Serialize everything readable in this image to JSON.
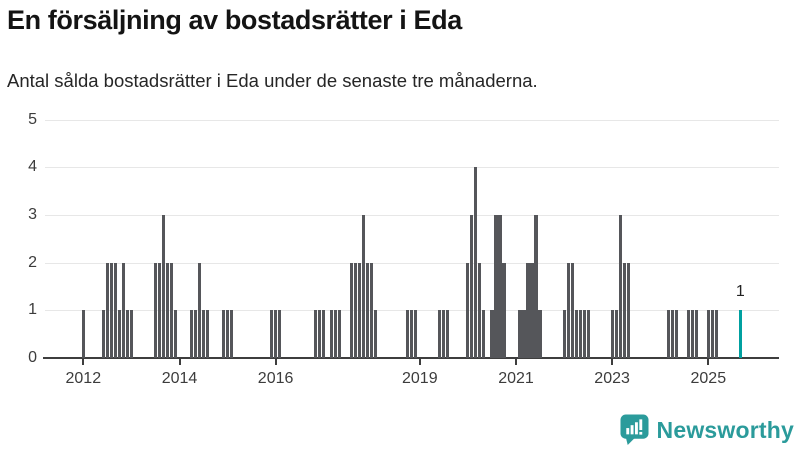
{
  "header": {
    "title": "En försäljning av bostadsrätter i Eda",
    "subtitle": "Antal sålda bostadsrätter i Eda under de senaste tre månaderna."
  },
  "chart_data": {
    "type": "bar",
    "title": "En försäljning av bostadsrätter i Eda",
    "subtitle": "Antal sålda bostadsrätter i Eda under de senaste tre månaderna.",
    "xlabel": "",
    "ylabel": "",
    "ylim": [
      0,
      5
    ],
    "yticks": [
      0,
      1,
      2,
      3,
      4,
      5
    ],
    "xticks": [
      "2012",
      "2014",
      "2016",
      "2019",
      "2021",
      "2023",
      "2025"
    ],
    "grid": "horizontal",
    "legend": "none",
    "bar_color": "#55565a",
    "highlight_color": "#00a0a0",
    "bars": [
      [
        "2012-01",
        1
      ],
      [
        "2012-06",
        1
      ],
      [
        "2012-07",
        2
      ],
      [
        "2012-08",
        2
      ],
      [
        "2012-09",
        2
      ],
      [
        "2012-10",
        1
      ],
      [
        "2012-11",
        2
      ],
      [
        "2012-12",
        1
      ],
      [
        "2013-01",
        1
      ],
      [
        "2013-07",
        2
      ],
      [
        "2013-08",
        2
      ],
      [
        "2013-09",
        3
      ],
      [
        "2013-10",
        2
      ],
      [
        "2013-11",
        2
      ],
      [
        "2013-12",
        1
      ],
      [
        "2014-04",
        1
      ],
      [
        "2014-05",
        1
      ],
      [
        "2014-06",
        2
      ],
      [
        "2014-07",
        1
      ],
      [
        "2014-08",
        1
      ],
      [
        "2014-12",
        1
      ],
      [
        "2015-01",
        1
      ],
      [
        "2015-02",
        1
      ],
      [
        "2015-12",
        1
      ],
      [
        "2016-01",
        1
      ],
      [
        "2016-02",
        1
      ],
      [
        "2016-11",
        1
      ],
      [
        "2016-12",
        1
      ],
      [
        "2017-01",
        1
      ],
      [
        "2017-03",
        1
      ],
      [
        "2017-04",
        1
      ],
      [
        "2017-05",
        1
      ],
      [
        "2017-08",
        2
      ],
      [
        "2017-09",
        2
      ],
      [
        "2017-10",
        2
      ],
      [
        "2017-11",
        3
      ],
      [
        "2017-12",
        2
      ],
      [
        "2018-01",
        2
      ],
      [
        "2018-02",
        1
      ],
      [
        "2018-10",
        1
      ],
      [
        "2018-11",
        1
      ],
      [
        "2018-12",
        1
      ],
      [
        "2019-06",
        1
      ],
      [
        "2019-07",
        1
      ],
      [
        "2019-08",
        1
      ],
      [
        "2020-01",
        2
      ],
      [
        "2020-02",
        3
      ],
      [
        "2020-03",
        4
      ],
      [
        "2020-04",
        2
      ],
      [
        "2020-05",
        1
      ],
      [
        "2020-07",
        1
      ],
      [
        "2020-08",
        3
      ],
      [
        "2020-09",
        3
      ],
      [
        "2020-10",
        2
      ],
      [
        "2021-02",
        1
      ],
      [
        "2021-03",
        1
      ],
      [
        "2021-04",
        2
      ],
      [
        "2021-05",
        2
      ],
      [
        "2021-06",
        3
      ],
      [
        "2021-07",
        1
      ],
      [
        "2022-01",
        1
      ],
      [
        "2022-02",
        2
      ],
      [
        "2022-03",
        2
      ],
      [
        "2022-04",
        1
      ],
      [
        "2022-05",
        1
      ],
      [
        "2022-06",
        1
      ],
      [
        "2022-07",
        1
      ],
      [
        "2023-01",
        1
      ],
      [
        "2023-02",
        1
      ],
      [
        "2023-03",
        3
      ],
      [
        "2023-04",
        2
      ],
      [
        "2023-05",
        2
      ],
      [
        "2024-03",
        1
      ],
      [
        "2024-04",
        1
      ],
      [
        "2024-05",
        1
      ],
      [
        "2024-08",
        1
      ],
      [
        "2024-09",
        1
      ],
      [
        "2024-10",
        1
      ],
      [
        "2025-01",
        1
      ],
      [
        "2025-02",
        1
      ],
      [
        "2025-03",
        1
      ],
      [
        "2025-09",
        1,
        true
      ]
    ],
    "value_label": {
      "text": "1",
      "month": "2025-09"
    }
  },
  "footer": {
    "brand": "Newsworthy",
    "brand_color": "#2b9b9b"
  }
}
